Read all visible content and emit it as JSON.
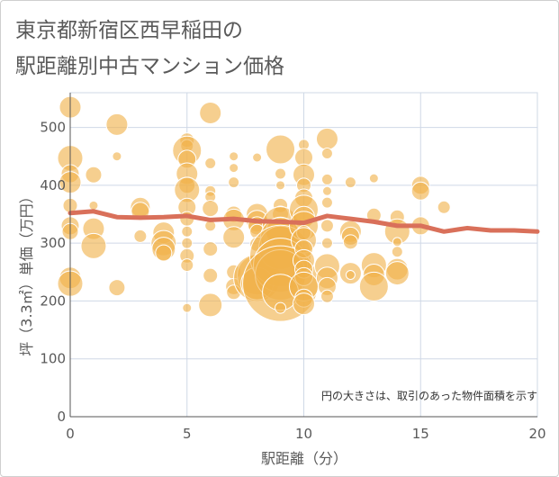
{
  "title_line1": "東京都新宿区西早稲田の",
  "title_line2": "駅距離別中古マンション価格",
  "chart_data": {
    "type": "scatter",
    "xlabel": "駅距離（分）",
    "ylabel": "坪（3.3㎡）単価（万円）",
    "note": "円の大きさは、取引のあった物件面積を示す",
    "xlim": [
      0,
      20
    ],
    "ylim": [
      0,
      560
    ],
    "xticks": [
      0,
      5,
      10,
      15,
      20
    ],
    "yticks": [
      0,
      100,
      200,
      300,
      400,
      500
    ],
    "grid": true,
    "colors": {
      "bubble": "#f0b24a",
      "line": "#d9705a",
      "grid": "#cfd8e6"
    },
    "bubbles": [
      [
        0,
        535,
        12
      ],
      [
        0,
        447,
        14
      ],
      [
        0,
        420,
        10
      ],
      [
        0,
        405,
        12
      ],
      [
        0,
        365,
        8
      ],
      [
        0,
        330,
        10
      ],
      [
        0,
        320,
        9
      ],
      [
        0,
        240,
        12
      ],
      [
        0,
        230,
        14
      ],
      [
        1,
        418,
        9
      ],
      [
        1,
        325,
        12
      ],
      [
        1,
        295,
        14
      ],
      [
        1,
        365,
        5
      ],
      [
        2,
        505,
        12
      ],
      [
        2,
        450,
        5
      ],
      [
        2,
        223,
        9
      ],
      [
        3,
        362,
        11
      ],
      [
        3,
        355,
        10
      ],
      [
        3,
        312,
        7
      ],
      [
        4,
        318,
        12
      ],
      [
        4,
        300,
        14
      ],
      [
        4,
        290,
        13
      ],
      [
        4,
        283,
        9
      ],
      [
        5,
        478,
        8
      ],
      [
        5,
        468,
        7
      ],
      [
        5,
        460,
        16
      ],
      [
        5,
        445,
        10
      ],
      [
        5,
        420,
        12
      ],
      [
        5,
        400,
        9
      ],
      [
        5,
        392,
        14
      ],
      [
        5,
        362,
        10
      ],
      [
        5,
        342,
        8
      ],
      [
        5,
        320,
        6
      ],
      [
        5,
        300,
        6
      ],
      [
        5,
        278,
        8
      ],
      [
        5,
        262,
        7
      ],
      [
        5,
        188,
        5
      ],
      [
        6,
        525,
        12
      ],
      [
        6,
        438,
        6
      ],
      [
        6,
        390,
        6
      ],
      [
        6,
        380,
        6
      ],
      [
        6,
        360,
        9
      ],
      [
        6,
        330,
        6
      ],
      [
        6,
        290,
        8
      ],
      [
        6,
        244,
        8
      ],
      [
        6,
        193,
        13
      ],
      [
        7,
        450,
        5
      ],
      [
        7,
        430,
        5
      ],
      [
        7,
        405,
        6
      ],
      [
        7,
        350,
        9
      ],
      [
        7,
        340,
        12
      ],
      [
        7,
        310,
        12
      ],
      [
        7,
        250,
        8
      ],
      [
        7,
        225,
        9
      ],
      [
        7,
        215,
        8
      ],
      [
        8,
        350,
        12
      ],
      [
        8,
        338,
        12
      ],
      [
        8,
        330,
        10
      ],
      [
        8,
        320,
        8
      ],
      [
        8,
        298,
        8
      ],
      [
        8,
        245,
        22
      ],
      [
        8,
        240,
        26
      ],
      [
        8,
        230,
        18
      ],
      [
        8,
        448,
        5
      ],
      [
        9,
        462,
        16
      ],
      [
        9,
        420,
        6
      ],
      [
        9,
        400,
        5
      ],
      [
        9,
        365,
        8
      ],
      [
        9,
        350,
        9
      ],
      [
        9,
        332,
        20
      ],
      [
        9,
        320,
        16
      ],
      [
        9,
        310,
        22
      ],
      [
        9,
        292,
        24
      ],
      [
        9,
        278,
        34
      ],
      [
        9,
        262,
        30
      ],
      [
        9,
        245,
        28
      ],
      [
        9,
        230,
        42
      ],
      [
        9,
        215,
        20
      ],
      [
        9,
        188,
        6
      ],
      [
        10,
        470,
        6
      ],
      [
        10,
        448,
        10
      ],
      [
        10,
        418,
        12
      ],
      [
        10,
        400,
        8
      ],
      [
        10,
        378,
        10
      ],
      [
        10,
        358,
        16
      ],
      [
        10,
        345,
        12
      ],
      [
        10,
        330,
        16
      ],
      [
        10,
        318,
        8
      ],
      [
        10,
        305,
        14
      ],
      [
        10,
        290,
        10
      ],
      [
        10,
        270,
        12
      ],
      [
        10,
        255,
        10
      ],
      [
        10,
        242,
        10
      ],
      [
        10,
        225,
        16
      ],
      [
        10,
        205,
        10
      ],
      [
        10,
        195,
        12
      ],
      [
        11,
        480,
        12
      ],
      [
        11,
        455,
        6
      ],
      [
        11,
        410,
        6
      ],
      [
        11,
        390,
        5
      ],
      [
        11,
        370,
        6
      ],
      [
        11,
        330,
        7
      ],
      [
        11,
        300,
        6
      ],
      [
        11,
        260,
        14
      ],
      [
        11,
        240,
        12
      ],
      [
        11,
        225,
        10
      ],
      [
        11,
        208,
        7
      ],
      [
        12,
        405,
        6
      ],
      [
        12,
        320,
        12
      ],
      [
        12,
        312,
        10
      ],
      [
        12,
        302,
        8
      ],
      [
        12,
        248,
        12
      ],
      [
        12,
        245,
        5
      ],
      [
        13,
        412,
        5
      ],
      [
        13,
        348,
        8
      ],
      [
        13,
        262,
        14
      ],
      [
        13,
        245,
        12
      ],
      [
        13,
        225,
        16
      ],
      [
        14,
        345,
        8
      ],
      [
        14,
        320,
        14
      ],
      [
        14,
        302,
        5
      ],
      [
        14,
        285,
        6
      ],
      [
        14,
        255,
        12
      ],
      [
        14,
        248,
        13
      ],
      [
        15,
        400,
        10
      ],
      [
        15,
        390,
        10
      ],
      [
        15,
        330,
        10
      ],
      [
        16,
        362,
        7
      ]
    ],
    "line": {
      "x": [
        0,
        1,
        2,
        3,
        4,
        5,
        6,
        7,
        8,
        9,
        10,
        11,
        12,
        13,
        14,
        15,
        16,
        17,
        18,
        19,
        20
      ],
      "y": [
        352,
        355,
        345,
        344,
        345,
        347,
        340,
        342,
        338,
        337,
        335,
        347,
        342,
        337,
        330,
        330,
        320,
        326,
        322,
        322,
        320
      ]
    }
  }
}
